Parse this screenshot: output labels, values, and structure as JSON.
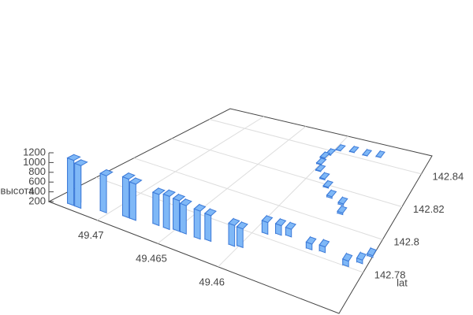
{
  "chart_data": {
    "type": "bar3d",
    "xlim": [
      49.45,
      49.474
    ],
    "xticks": [
      49.47,
      49.465,
      49.46
    ],
    "ylim": [
      142.755,
      142.851
    ],
    "yticks": [
      142.78,
      142.8,
      142.82,
      142.84
    ],
    "zlim": [
      200,
      1200
    ],
    "zticks": [
      200,
      400,
      600,
      800,
      1000,
      1200
    ],
    "y_label": "lat",
    "z_label": "высота",
    "color": "#7fb8f7",
    "edge_color": "#3c7ad8",
    "x": [
      49.4727,
      49.4721,
      49.4704,
      49.4688,
      49.4682,
      49.4665,
      49.4656,
      49.4649,
      49.4643,
      49.4631,
      49.4623,
      49.4605,
      49.4599,
      49.4591,
      49.4581,
      49.4573,
      49.4551,
      49.454,
      49.4516,
      49.4507,
      49.4502,
      49.4548,
      49.4553,
      49.4567,
      49.4577,
      49.4586,
      49.4596,
      49.4601,
      49.4603,
      49.4601,
      49.4596,
      49.4582,
      49.4567,
      49.4553
    ],
    "y": [
      142.76,
      142.76,
      142.763,
      142.765,
      142.765,
      142.767,
      142.767,
      142.768,
      142.768,
      142.768,
      142.769,
      142.771,
      142.772,
      142.784,
      142.786,
      142.787,
      142.784,
      142.785,
      142.782,
      142.786,
      142.791,
      142.808,
      142.813,
      142.815,
      142.82,
      142.824,
      142.828,
      142.832,
      142.836,
      142.839,
      142.843,
      142.844,
      142.844,
      142.845
    ],
    "z": [
      1150,
      1100,
      1000,
      1050,
      1000,
      900,
      950,
      900,
      850,
      850,
      800,
      700,
      650,
      500,
      450,
      400,
      350,
      350,
      350,
      300,
      250,
      250,
      250,
      250,
      230,
      230,
      220,
      220,
      230,
      220,
      210,
      210,
      210,
      210
    ]
  }
}
